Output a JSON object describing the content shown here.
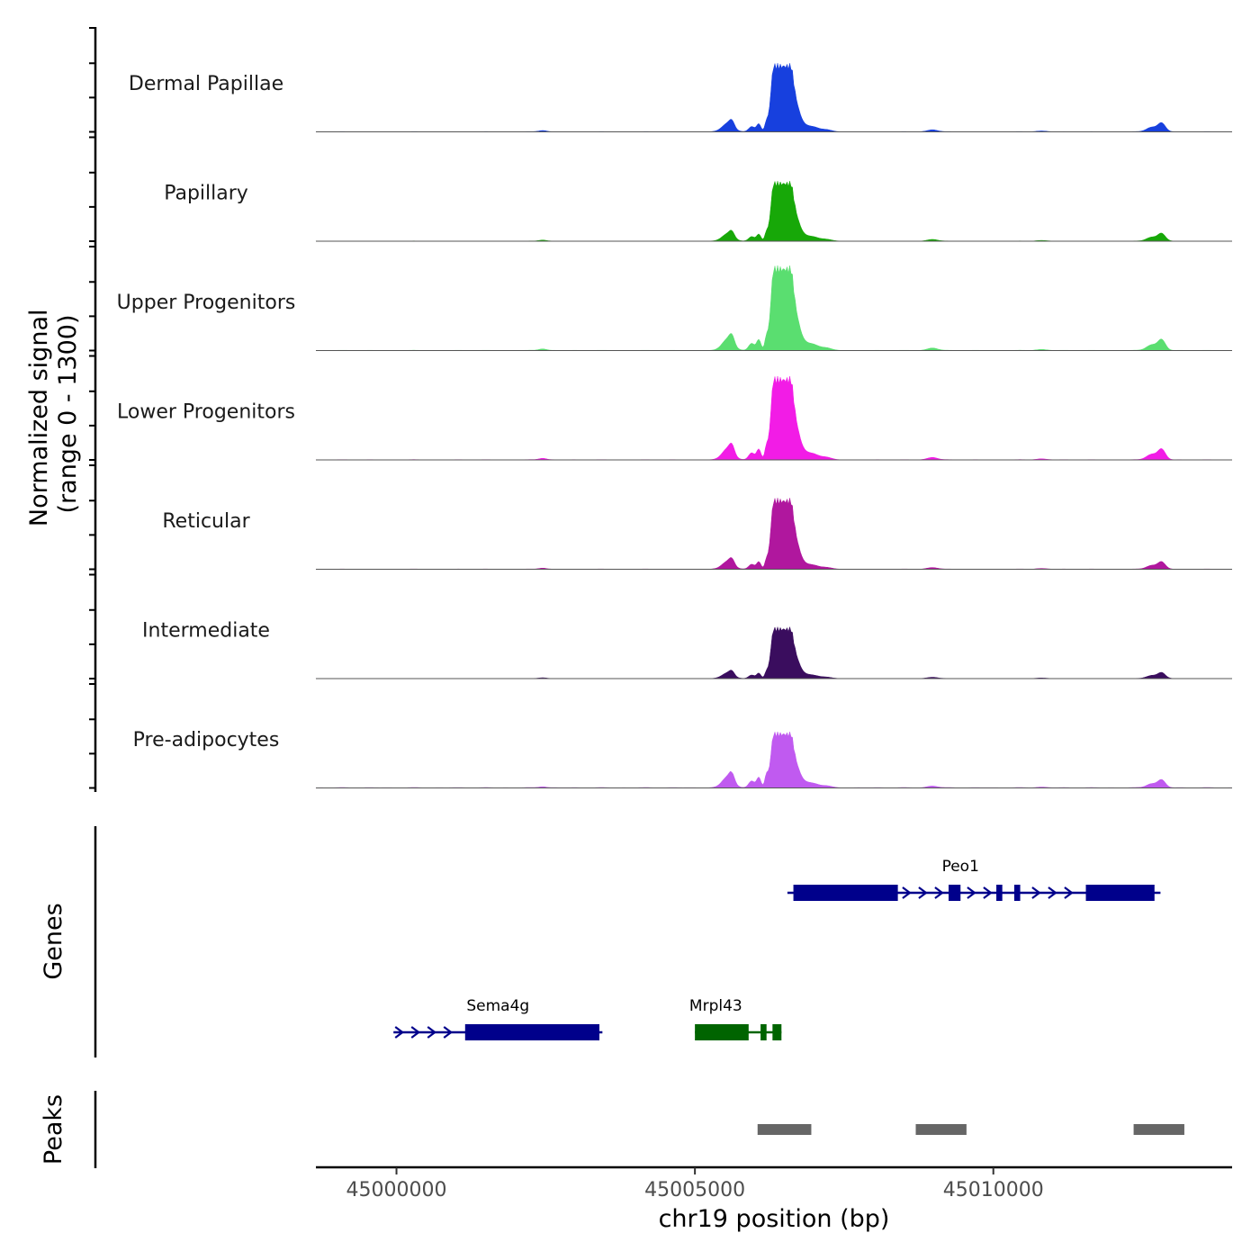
{
  "chart_data": {
    "type": "coverage-track",
    "chromosome": "chr19",
    "x_range": [
      44998650,
      45014000
    ],
    "xlabel": "chr19 position (bp)",
    "x_ticks": [
      45000000,
      45005000,
      45010000
    ],
    "coverage": {
      "ylabel_line1": "Normalized signal",
      "ylabel_line2": "(range 0 - 1300)",
      "y_range": [
        0,
        1300
      ],
      "tracks": [
        {
          "name": "Dermal Papillae",
          "color": "#1740de",
          "peak": 1050,
          "left_scale": 1.0,
          "right_scale": 1.0,
          "noise": 1.0
        },
        {
          "name": "Papillary",
          "color": "#17a808",
          "peak": 920,
          "left_scale": 1.0,
          "right_scale": 1.0,
          "noise": 1.0
        },
        {
          "name": "Upper Progenitors",
          "color": "#5ade70",
          "peak": 1300,
          "left_scale": 1.1,
          "right_scale": 1.0,
          "noise": 1.0
        },
        {
          "name": "Lower Progenitors",
          "color": "#f21ce6",
          "peak": 1280,
          "left_scale": 1.1,
          "right_scale": 1.0,
          "noise": 1.0
        },
        {
          "name": "Reticular",
          "color": "#b0179e",
          "peak": 1090,
          "left_scale": 0.9,
          "right_scale": 0.8,
          "noise": 1.0
        },
        {
          "name": "Intermediate",
          "color": "#3a0d5e",
          "peak": 790,
          "left_scale": 0.9,
          "right_scale": 0.9,
          "noise": 1.0
        },
        {
          "name": "Pre-adipocytes",
          "color": "#c05af0",
          "peak": 860,
          "left_scale": 1.6,
          "right_scale": 1.1,
          "noise": 2.2
        }
      ]
    },
    "genes": {
      "title": "Genes",
      "items": [
        {
          "name": "Peo1",
          "strand": "+",
          "color": "#00008b",
          "row": 1,
          "start": 45006550,
          "end": 45012800,
          "exons": [
            [
              45006650,
              45008400
            ],
            [
              45009250,
              45009450
            ],
            [
              45010050,
              45010150
            ],
            [
              45010350,
              45010450
            ],
            [
              45011550,
              45012700
            ]
          ]
        },
        {
          "name": "Sema4g",
          "strand": "+",
          "color": "#00008b",
          "row": 2,
          "start": 44999950,
          "end": 45003450,
          "exons": [
            [
              45001150,
              45003400
            ]
          ]
        },
        {
          "name": "Mrpl43",
          "strand": "-",
          "color": "#006400",
          "row": 2,
          "start": 45005000,
          "end": 45006450,
          "exons": [
            [
              45005000,
              45005900
            ],
            [
              45006100,
              45006200
            ],
            [
              45006300,
              45006450
            ]
          ]
        }
      ]
    },
    "peaks": {
      "title": "Peaks",
      "color": "#666666",
      "regions": [
        [
          45006050,
          45006950
        ],
        [
          45008700,
          45009550
        ],
        [
          45012350,
          45013200
        ]
      ]
    }
  }
}
